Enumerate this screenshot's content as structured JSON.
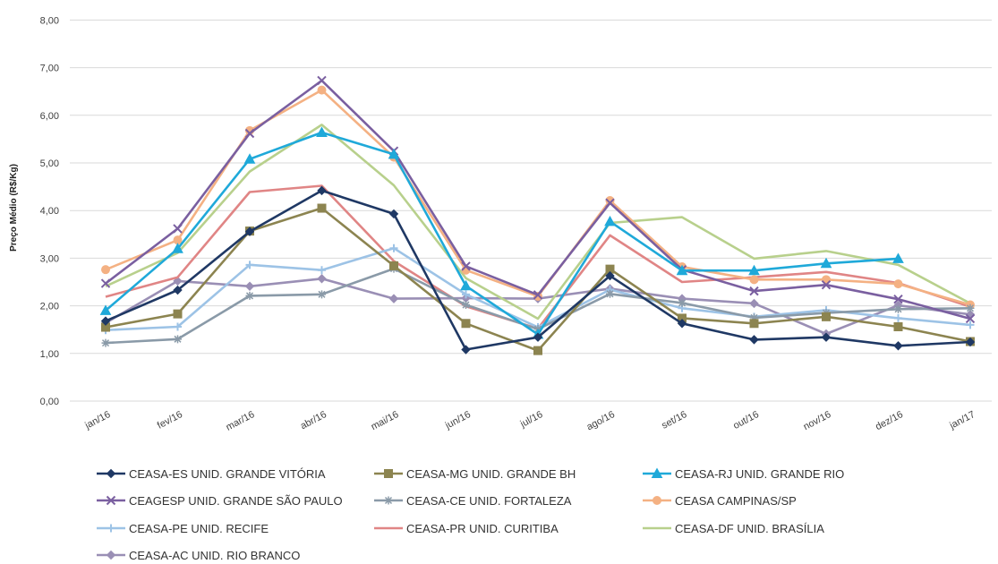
{
  "chart_data": {
    "type": "line",
    "title": "",
    "xlabel": "",
    "ylabel": "Preço Médio (R$/Kg)",
    "ylim": [
      0,
      8
    ],
    "yticks": [
      "0,00",
      "1,00",
      "2,00",
      "3,00",
      "4,00",
      "5,00",
      "6,00",
      "7,00",
      "8,00"
    ],
    "grid": true,
    "legend_position": "bottom",
    "categories": [
      "jan/16",
      "fev/16",
      "mar/16",
      "abr/16",
      "mai/16",
      "jun/16",
      "jul/16",
      "ago/16",
      "set/16",
      "out/16",
      "nov/16",
      "dez/16",
      "jan/17"
    ],
    "series": [
      {
        "name": "CEASA-ES UNID. GRANDE VITÓRIA",
        "color": "#1f3864",
        "marker": "diamond",
        "values": [
          1.68,
          2.33,
          3.56,
          4.42,
          3.93,
          1.08,
          1.34,
          2.63,
          1.63,
          1.29,
          1.34,
          1.16,
          1.24
        ]
      },
      {
        "name": "CEASA-MG UNID. GRANDE BH",
        "color": "#8c8450",
        "marker": "square",
        "values": [
          1.55,
          1.83,
          3.57,
          4.05,
          2.84,
          1.63,
          1.06,
          2.77,
          1.74,
          1.63,
          1.77,
          1.56,
          1.25
        ]
      },
      {
        "name": "CEASA-RJ UNID. GRANDE RIO",
        "color": "#1fa9d9",
        "marker": "triangle",
        "values": [
          1.9,
          3.2,
          5.08,
          5.64,
          5.18,
          2.42,
          1.4,
          3.77,
          2.74,
          2.74,
          2.89,
          2.99,
          null
        ]
      },
      {
        "name": "CEAGESP UNID. GRANDE SÃO PAULO",
        "color": "#7a5fa0",
        "marker": "x",
        "values": [
          2.47,
          3.62,
          5.62,
          6.73,
          5.25,
          2.83,
          2.23,
          4.16,
          2.76,
          2.31,
          2.44,
          2.14,
          1.73
        ]
      },
      {
        "name": "CEASA-CE UNID. FORTALEZA",
        "color": "#8a9aa8",
        "marker": "star",
        "values": [
          1.22,
          1.3,
          2.21,
          2.24,
          2.78,
          2.02,
          1.51,
          2.25,
          2.06,
          1.75,
          1.85,
          1.93,
          1.95
        ]
      },
      {
        "name": "CEASA CAMPINAS/SP",
        "color": "#f4b183",
        "marker": "circle",
        "values": [
          2.76,
          3.38,
          5.68,
          6.53,
          5.12,
          2.75,
          2.2,
          4.21,
          2.82,
          2.55,
          2.55,
          2.46,
          2.02
        ]
      },
      {
        "name": "CEASA-PE UNID. RECIFE",
        "color": "#9dc3e6",
        "marker": "plus",
        "values": [
          1.49,
          1.56,
          2.86,
          2.75,
          3.21,
          2.24,
          1.55,
          2.34,
          1.95,
          1.77,
          1.91,
          1.74,
          1.6
        ]
      },
      {
        "name": "CEASA-PR UNID. CURITIBA",
        "color": "#e08585",
        "marker": "none",
        "values": [
          2.19,
          2.6,
          4.39,
          4.52,
          2.94,
          1.99,
          1.52,
          3.48,
          2.5,
          2.6,
          2.71,
          2.48,
          1.98
        ]
      },
      {
        "name": "CEASA-DF UNID. BRASÍLIA",
        "color": "#b8d08c",
        "marker": "none",
        "values": [
          2.41,
          3.11,
          4.82,
          5.8,
          4.53,
          2.58,
          1.73,
          3.74,
          3.86,
          2.99,
          3.15,
          2.86,
          2.05
        ]
      },
      {
        "name": "CEASA-AC UNID. RIO BRANCO",
        "color": "#9a8fb5",
        "marker": "diamond",
        "values": [
          1.64,
          2.52,
          2.41,
          2.57,
          2.15,
          2.16,
          2.15,
          2.36,
          2.15,
          2.05,
          1.41,
          2.01,
          1.82
        ]
      }
    ]
  }
}
